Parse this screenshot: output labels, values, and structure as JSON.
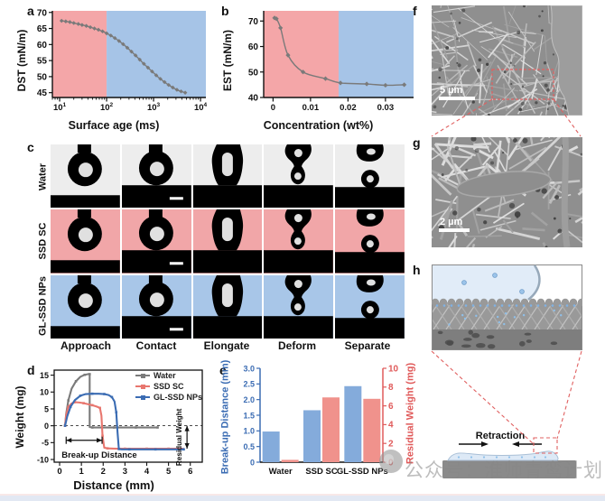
{
  "panels": {
    "a": {
      "label": "a"
    },
    "b": {
      "label": "b"
    },
    "c": {
      "label": "c",
      "rows": [
        {
          "label": "Water",
          "bg": "#ededed"
        },
        {
          "label": "SSD SC",
          "bg": "#f1a6a8"
        },
        {
          "label": "GL-SSD NPs",
          "bg": "#a8c6e8"
        }
      ],
      "stages": [
        "Approach",
        "Contact",
        "Elongate",
        "Deform",
        "Separate"
      ]
    },
    "d": {
      "label": "d"
    },
    "e": {
      "label": "e"
    },
    "f": {
      "label": "f",
      "scale_bar": "5 µm"
    },
    "g": {
      "label": "g",
      "scale_bar": "2 µm"
    },
    "h": {
      "label": "h",
      "retraction": "Retraction"
    }
  },
  "watermark": {
    "text": "公众号：淮师青鸾计划"
  },
  "colors": {
    "region_pink": "#f4a6a8",
    "region_blue": "#a6c4e7",
    "water_gray": "#7a7a7a",
    "ssd_red": "#e8766e",
    "glssd_blue": "#3b6cb3",
    "bar_blue": "#84abdb",
    "bar_red": "#f0928c",
    "dashed_red": "#e06060"
  },
  "chart_data": [
    {
      "id": "a",
      "type": "line",
      "xscale": "log",
      "xlabel": "Surface age (ms)",
      "ylabel": "DST (mN/m)",
      "xlim": [
        7,
        13000
      ],
      "ylim": [
        43.5,
        70.5
      ],
      "xticks": [
        10,
        100,
        1000,
        10000
      ],
      "yticks": [
        45,
        50,
        55,
        60,
        65,
        70
      ],
      "regions": [
        {
          "from": 7,
          "to": 100,
          "color": "#f4a6a8"
        },
        {
          "from": 100,
          "to": 13000,
          "color": "#a6c4e7"
        }
      ],
      "line_color": "#7a7a7a",
      "x": [
        11,
        13.5,
        16.5,
        20,
        25,
        30,
        37,
        45,
        55,
        67,
        82,
        100,
        123,
        150,
        184,
        225,
        276,
        338,
        414,
        507,
        621,
        760,
        931,
        1140,
        1397,
        1711,
        2096,
        2567,
        3144,
        3851,
        4717
      ],
      "y": [
        67.4,
        67.2,
        67,
        66.7,
        66.4,
        66.1,
        65.8,
        65.4,
        65,
        64.6,
        64.1,
        63.5,
        62.8,
        62,
        61.1,
        60.1,
        59,
        57.8,
        56.6,
        55.3,
        54,
        52.8,
        51.6,
        50.4,
        49.3,
        48.3,
        47.4,
        46.6,
        45.9,
        45.4,
        45
      ]
    },
    {
      "id": "b",
      "type": "line",
      "xscale": "linear",
      "xlabel": "Concentration (wt%)",
      "ylabel": "EST (mN/m)",
      "xlim": [
        -0.0025,
        0.0375
      ],
      "ylim": [
        40,
        74
      ],
      "xticks": [
        0,
        0.01,
        0.02,
        0.03
      ],
      "yticks": [
        40,
        50,
        60,
        70
      ],
      "regions": [
        {
          "from": -0.0025,
          "to": 0.0175,
          "color": "#f4a6a8"
        },
        {
          "from": 0.0175,
          "to": 0.0375,
          "color": "#a6c4e7"
        }
      ],
      "line_color": "#7a7a7a",
      "x": [
        0.0004,
        0.0009,
        0.002,
        0.004,
        0.008,
        0.014,
        0.018,
        0.025,
        0.03,
        0.035
      ],
      "y": [
        71.2,
        70.9,
        67.3,
        56.6,
        50.0,
        47.4,
        45.7,
        45.3,
        44.8,
        45.0
      ]
    },
    {
      "id": "d",
      "type": "line-multi",
      "xlabel": "Distance (mm)",
      "ylabel": "Weight (mg)",
      "xlim": [
        -0.25,
        6.55
      ],
      "ylim": [
        -10.8,
        16.5
      ],
      "xticks": [
        0,
        1,
        2,
        3,
        4,
        5,
        6
      ],
      "yticks": [
        -10,
        -5,
        0,
        5,
        10,
        15
      ],
      "zero_line": true,
      "series": [
        {
          "name": "Water",
          "color": "#7a7a7a",
          "x": [
            0.25,
            0.3,
            0.4,
            0.55,
            0.75,
            0.95,
            1.15,
            1.3,
            1.38,
            1.38,
            1.5,
            2,
            2.5,
            3,
            3.5,
            4,
            4.5
          ],
          "y": [
            0,
            3.5,
            7.5,
            11,
            13.2,
            14.5,
            15.1,
            15.3,
            15.3,
            -0.4,
            -0.5,
            -0.5,
            -0.5,
            -0.5,
            -0.5,
            -0.5,
            -0.5
          ]
        },
        {
          "name": "SSD SC",
          "color": "#e8766e",
          "x": [
            0.25,
            0.3,
            0.4,
            0.55,
            0.7,
            0.9,
            1.1,
            1.3,
            1.5,
            1.7,
            1.85,
            1.92,
            1.97,
            2.05,
            2.2,
            2.6,
            3,
            3.5,
            4,
            4.5,
            5,
            5.7
          ],
          "y": [
            0,
            3.2,
            5.6,
            6.6,
            7,
            6.9,
            6.7,
            6.4,
            6.1,
            5.7,
            5.3,
            3,
            -3,
            -6.5,
            -6.7,
            -6.8,
            -6.8,
            -6.8,
            -6.8,
            -6.8,
            -6.8,
            -6.8
          ]
        },
        {
          "name": "GL-SSD NPs",
          "color": "#3b6cb3",
          "x": [
            0.25,
            0.35,
            0.5,
            0.7,
            0.95,
            1.2,
            1.5,
            1.8,
            2.05,
            2.25,
            2.4,
            2.52,
            2.6,
            2.66,
            2.72,
            2.85,
            3.2,
            3.8,
            4.4,
            5,
            5.7
          ],
          "y": [
            0,
            2.8,
            5.6,
            7.6,
            8.9,
            9.4,
            9.5,
            9.5,
            9.4,
            9.1,
            8.5,
            7.2,
            4,
            -2,
            -6.9,
            -7,
            -7,
            -7,
            -7,
            -7,
            -7
          ]
        }
      ],
      "annotations": {
        "breakup": {
          "text": "Break-up Distance",
          "x_from": 0.3,
          "x_to": 1.95,
          "y": -4.3
        },
        "residual": {
          "text": "Residual Weight",
          "x": 5.85,
          "y_from": 0,
          "y_to": -6.8
        }
      }
    },
    {
      "id": "e",
      "type": "bar",
      "categories": [
        "Water",
        "SSD SC",
        "GL-SSD NPs"
      ],
      "series": [
        {
          "name": "Break-up Distance (mm)",
          "axis": "left",
          "color": "#84abdb",
          "values": [
            0.98,
            1.66,
            2.43
          ]
        },
        {
          "name": "Residual Weight (mg)",
          "axis": "right",
          "color": "#f0928c",
          "values": [
            0.25,
            6.9,
            6.75
          ]
        }
      ],
      "left_label": "Break-up Distance (mm)",
      "right_label": "Residual Weight (mg)",
      "left_ylim": [
        0,
        3
      ],
      "left_yticks": [
        0,
        0.5,
        1.0,
        1.5,
        2.0,
        2.5,
        3.0
      ],
      "right_ylim": [
        0,
        10
      ],
      "right_yticks": [
        0,
        2,
        4,
        6,
        8,
        10
      ],
      "left_color": "#3b6cb3",
      "right_color": "#e05a5a"
    }
  ]
}
